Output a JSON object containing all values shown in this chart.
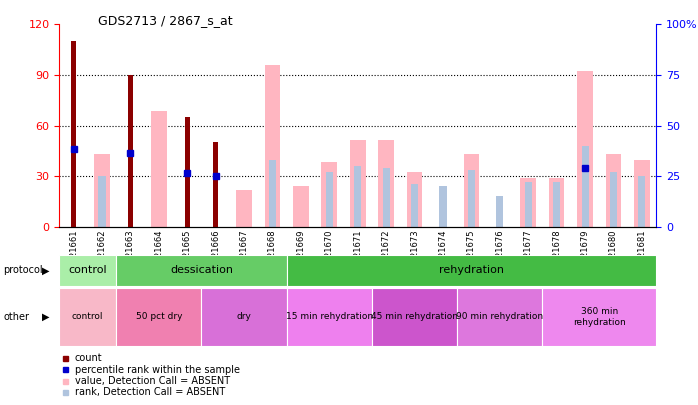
{
  "title": "GDS2713 / 2867_s_at",
  "samples": [
    "GSM21661",
    "GSM21662",
    "GSM21663",
    "GSM21664",
    "GSM21665",
    "GSM21666",
    "GSM21667",
    "GSM21668",
    "GSM21669",
    "GSM21670",
    "GSM21671",
    "GSM21672",
    "GSM21673",
    "GSM21674",
    "GSM21675",
    "GSM21676",
    "GSM21677",
    "GSM21678",
    "GSM21679",
    "GSM21680",
    "GSM21681"
  ],
  "count": [
    110,
    0,
    90,
    0,
    65,
    50,
    0,
    0,
    0,
    0,
    0,
    0,
    0,
    0,
    0,
    0,
    0,
    0,
    0,
    0,
    0
  ],
  "percentile_rank": [
    46,
    0,
    44,
    0,
    32,
    30,
    0,
    0,
    0,
    0,
    0,
    0,
    0,
    0,
    0,
    0,
    0,
    0,
    35,
    0,
    0
  ],
  "value_absent": [
    0,
    36,
    0,
    57,
    0,
    0,
    18,
    80,
    20,
    32,
    43,
    43,
    27,
    0,
    36,
    0,
    24,
    24,
    77,
    36,
    33
  ],
  "rank_absent": [
    0,
    25,
    0,
    0,
    0,
    0,
    0,
    33,
    0,
    27,
    30,
    29,
    21,
    20,
    28,
    15,
    22,
    22,
    40,
    27,
    25
  ],
  "ylim_left": [
    0,
    120
  ],
  "yticks_left": [
    0,
    30,
    60,
    90,
    120
  ],
  "yticks_right": [
    0,
    25,
    50,
    75,
    100
  ],
  "protocol_groups": [
    {
      "label": "control",
      "start": 0,
      "end": 2,
      "color": "#aaeea8"
    },
    {
      "label": "dessication",
      "start": 2,
      "end": 8,
      "color": "#66cc66"
    },
    {
      "label": "rehydration",
      "start": 8,
      "end": 21,
      "color": "#44bb44"
    }
  ],
  "other_groups": [
    {
      "label": "control",
      "start": 0,
      "end": 2,
      "color": "#f8b8c8"
    },
    {
      "label": "50 pct dry",
      "start": 2,
      "end": 5,
      "color": "#f080b0"
    },
    {
      "label": "dry",
      "start": 5,
      "end": 8,
      "color": "#d870d8"
    },
    {
      "label": "15 min rehydration",
      "start": 8,
      "end": 11,
      "color": "#ee80ee"
    },
    {
      "label": "45 min rehydration",
      "start": 11,
      "end": 14,
      "color": "#cc55cc"
    },
    {
      "label": "90 min rehydration",
      "start": 14,
      "end": 17,
      "color": "#dd77dd"
    },
    {
      "label": "360 min\nrehydration",
      "start": 17,
      "end": 21,
      "color": "#ee88ee"
    }
  ],
  "count_color": "#8B0000",
  "percentile_color": "#0000CC",
  "value_absent_color": "#FFB6C1",
  "rank_absent_color": "#B0C4DE",
  "bg_color": "#FFFFFF",
  "grid_color": "#000000",
  "axis_gray": "#cccccc"
}
